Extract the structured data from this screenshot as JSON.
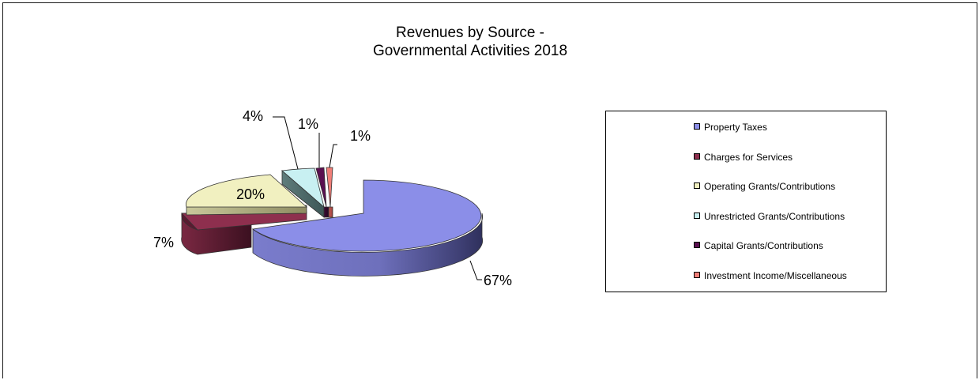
{
  "chart_data": {
    "type": "pie",
    "title": [
      "Revenues by Source -",
      "Governmental Activities 2018"
    ],
    "categories": [
      "Property Taxes",
      "Charges for Services",
      "Operating Grants/Contributions",
      "Unrestricted Grants/Contributions",
      "Capital Grants/Contributions",
      "Investment Income/Miscellaneous"
    ],
    "values": [
      67,
      7,
      20,
      4,
      1,
      1
    ],
    "data_labels": [
      "67%",
      "7%",
      "20%",
      "4%",
      "1%",
      "1%"
    ],
    "colors": [
      "#8B8EE8",
      "#8E2F4E",
      "#F1F0C0",
      "#C8F0F2",
      "#5A1050",
      "#F07E78"
    ],
    "legend_position": "right",
    "style": "3d exploded pie"
  }
}
